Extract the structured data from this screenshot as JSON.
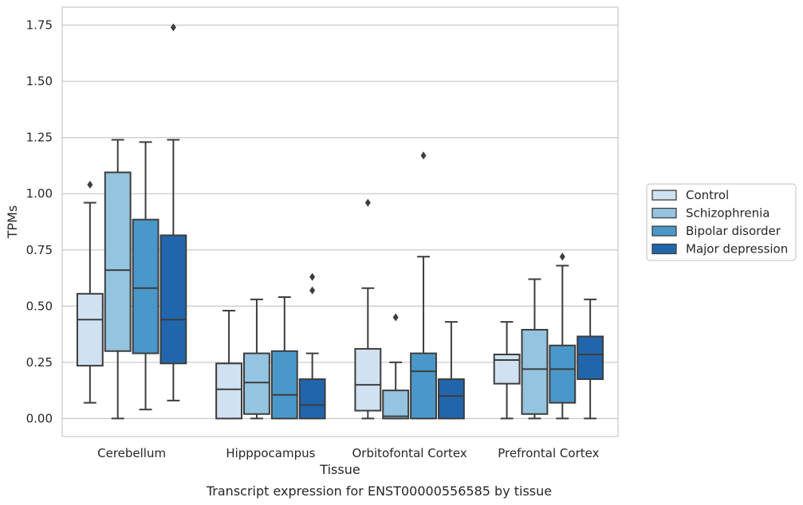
{
  "chart_data": {
    "type": "box",
    "title": "",
    "caption": "Transcript expression for ENST00000556585 by tissue",
    "xlabel": "Tissue",
    "ylabel": "TPMs",
    "ylim": [
      -0.08,
      1.83
    ],
    "yticks": [
      "0.00",
      "0.25",
      "0.50",
      "0.75",
      "1.00",
      "1.25",
      "1.50",
      "1.75"
    ],
    "grid": "horizontal",
    "legend_position": "right",
    "categories": [
      "Cerebellum",
      "Hipppocampus",
      "Orbitofontal Cortex",
      "Prefrontal Cortex"
    ],
    "series": [
      {
        "name": "Control",
        "color": "#d0e1f2",
        "boxes": [
          {
            "whisker_low": 0.07,
            "q1": 0.235,
            "median": 0.44,
            "q3": 0.555,
            "whisker_high": 0.96,
            "outliers": [
              1.04
            ]
          },
          {
            "whisker_low": 0.0,
            "q1": 0.0,
            "median": 0.13,
            "q3": 0.245,
            "whisker_high": 0.48,
            "outliers": []
          },
          {
            "whisker_low": 0.0,
            "q1": 0.035,
            "median": 0.15,
            "q3": 0.31,
            "whisker_high": 0.58,
            "outliers": [
              0.96
            ]
          },
          {
            "whisker_low": 0.0,
            "q1": 0.155,
            "median": 0.26,
            "q3": 0.285,
            "whisker_high": 0.43,
            "outliers": []
          }
        ]
      },
      {
        "name": "Schizophrenia",
        "color": "#94c4df",
        "boxes": [
          {
            "whisker_low": 0.0,
            "q1": 0.3,
            "median": 0.66,
            "q3": 1.095,
            "whisker_high": 1.24,
            "outliers": []
          },
          {
            "whisker_low": 0.0,
            "q1": 0.02,
            "median": 0.16,
            "q3": 0.29,
            "whisker_high": 0.53,
            "outliers": []
          },
          {
            "whisker_low": 0.0,
            "q1": 0.0,
            "median": 0.01,
            "q3": 0.125,
            "whisker_high": 0.25,
            "outliers": [
              0.45
            ]
          },
          {
            "whisker_low": 0.0,
            "q1": 0.02,
            "median": 0.22,
            "q3": 0.395,
            "whisker_high": 0.62,
            "outliers": []
          }
        ]
      },
      {
        "name": "Bipolar disorder",
        "color": "#4a98c9",
        "boxes": [
          {
            "whisker_low": 0.04,
            "q1": 0.29,
            "median": 0.58,
            "q3": 0.885,
            "whisker_high": 1.23,
            "outliers": []
          },
          {
            "whisker_low": 0.0,
            "q1": 0.0,
            "median": 0.105,
            "q3": 0.3,
            "whisker_high": 0.54,
            "outliers": []
          },
          {
            "whisker_low": 0.0,
            "q1": 0.0,
            "median": 0.21,
            "q3": 0.29,
            "whisker_high": 0.72,
            "outliers": [
              1.17
            ]
          },
          {
            "whisker_low": 0.0,
            "q1": 0.07,
            "median": 0.22,
            "q3": 0.325,
            "whisker_high": 0.68,
            "outliers": [
              0.72
            ]
          }
        ]
      },
      {
        "name": "Major depression",
        "color": "#2166ac",
        "boxes": [
          {
            "whisker_low": 0.08,
            "q1": 0.245,
            "median": 0.44,
            "q3": 0.815,
            "whisker_high": 1.24,
            "outliers": [
              1.74
            ]
          },
          {
            "whisker_low": 0.0,
            "q1": 0.0,
            "median": 0.06,
            "q3": 0.175,
            "whisker_high": 0.29,
            "outliers": [
              0.57,
              0.63
            ]
          },
          {
            "whisker_low": 0.0,
            "q1": 0.0,
            "median": 0.1,
            "q3": 0.175,
            "whisker_high": 0.43,
            "outliers": []
          },
          {
            "whisker_low": 0.0,
            "q1": 0.175,
            "median": 0.285,
            "q3": 0.365,
            "whisker_high": 0.53,
            "outliers": []
          }
        ]
      }
    ]
  }
}
